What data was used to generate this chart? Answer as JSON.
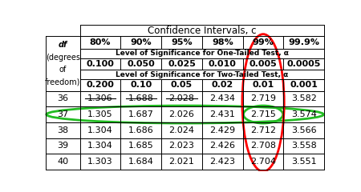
{
  "title": "Confidence Intervals, c",
  "col_headers_ci": [
    "80%",
    "90%",
    "95%",
    "98%",
    "99%",
    "99.9%"
  ],
  "row_one_tail_label": "Level of Significance for One-Tailed Test, α",
  "one_tail_vals": [
    "0.100",
    "0.050",
    "0.025",
    "0.010",
    "0.005",
    "0.0005"
  ],
  "row_two_tail_label": "Level of Significance for Two-Tailed Test, α",
  "two_tail_vals": [
    "0.200",
    "0.10",
    "0.05",
    "0.02",
    "0.01",
    "0.001"
  ],
  "df_label_lines": [
    "df",
    "(degrees",
    "of",
    "freedom)"
  ],
  "data_rows": [
    [
      36,
      "1.306",
      "1.688",
      "2.028",
      "2.434",
      "2.719",
      "3.582"
    ],
    [
      37,
      "1.305",
      "1.687",
      "2.026",
      "2.431",
      "2.715",
      "3.574"
    ],
    [
      38,
      "1.304",
      "1.686",
      "2.024",
      "2.429",
      "2.712",
      "3.566"
    ],
    [
      39,
      "1.304",
      "1.685",
      "2.023",
      "2.426",
      "2.708",
      "3.558"
    ],
    [
      40,
      "1.303",
      "1.684",
      "2.021",
      "2.423",
      "2.704",
      "3.551"
    ]
  ],
  "strikethrough_row": 0,
  "strikethrough_cols": [
    1,
    2,
    3
  ],
  "highlight_row": 1,
  "highlight_val_col": 5,
  "red_circle_col": 5,
  "background_color": "#ffffff"
}
